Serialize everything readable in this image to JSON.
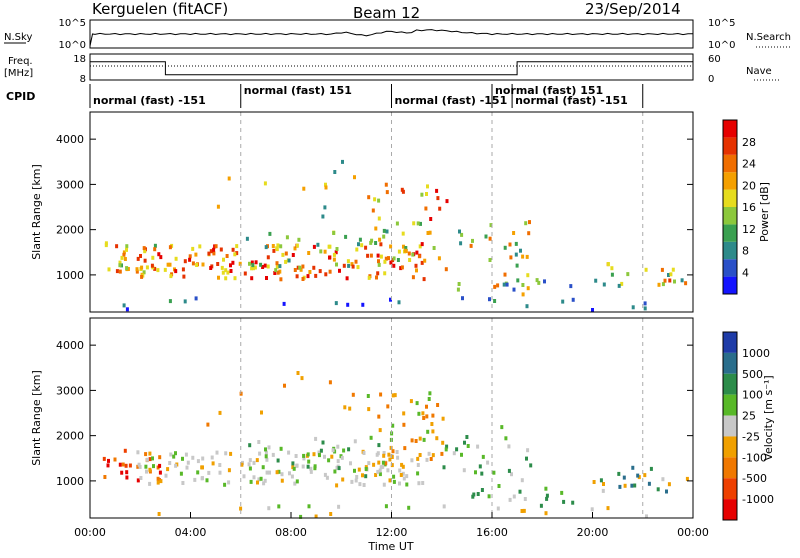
{
  "header": {
    "station": "Kerguelen (fitACF)",
    "beam": "Beam 12",
    "date": "23/Sep/2014"
  },
  "noise_panel": {
    "left_label": "N.Sky",
    "left_ticks": [
      "10^5",
      "10^0"
    ],
    "right_ticks": [
      "10^5",
      "10^0"
    ],
    "right_label": "N.Search"
  },
  "freq_panel": {
    "left_label_1": "Freq.",
    "left_label_2": "[MHz]",
    "left_ticks": [
      "18",
      "8"
    ],
    "right_ticks": [
      "60",
      "0"
    ],
    "right_label": "Nave",
    "freq_steps": [
      {
        "from": 0,
        "to": 3,
        "value": 15
      },
      {
        "from": 3,
        "to": 17,
        "value": 10
      },
      {
        "from": 17,
        "to": 24,
        "value": 15
      }
    ]
  },
  "cpid": {
    "label": "CPID",
    "segments": [
      {
        "start": 0,
        "end": 6,
        "text": "normal (fast) -151",
        "row": 1
      },
      {
        "start": 6,
        "end": 12,
        "text": "normal (fast) 151",
        "row": 0
      },
      {
        "start": 12,
        "end": 16,
        "text": "normal (fast) -151",
        "row": 1
      },
      {
        "start": 16,
        "end": 22,
        "text": "normal (fast) 151",
        "row": 0
      },
      {
        "start": 16.8,
        "end": 22,
        "text": "normal (fast) -151",
        "row": 1
      }
    ]
  },
  "chart_data": [
    {
      "type": "heatmap",
      "quantity": "Power",
      "ylabel": "Slant Range [km]",
      "ylim": [
        180,
        4600
      ],
      "yticks": [
        "1000",
        "2000",
        "3000",
        "4000"
      ],
      "xlim": [
        0,
        24
      ],
      "colorbar": {
        "label": "Power [dB]",
        "ticks": [
          "4",
          "8",
          "12",
          "16",
          "20",
          "24",
          "28"
        ],
        "colors": [
          "#1414ff",
          "#2a50c8",
          "#2d8a8a",
          "#3aa050",
          "#8cc83c",
          "#e6dc1e",
          "#f5a000",
          "#f06e00",
          "#e63200",
          "#e60000"
        ]
      }
    },
    {
      "type": "heatmap",
      "quantity": "Velocity",
      "ylabel": "Slant Range [km]",
      "ylim": [
        180,
        4600
      ],
      "yticks": [
        "1000",
        "2000",
        "3000",
        "4000"
      ],
      "xlim": [
        0,
        24
      ],
      "xticks": [
        "00:00",
        "04:00",
        "08:00",
        "12:00",
        "16:00",
        "20:00",
        "00:00"
      ],
      "xlabel": "Time UT",
      "colorbar": {
        "label": "Velocity [m s⁻¹]",
        "ticks": [
          "1000",
          "500",
          "100",
          "25",
          "-25",
          "-100",
          "-500",
          "-1000"
        ],
        "colors": [
          "#1f3ca8",
          "#2a6e8c",
          "#2c8c4a",
          "#58b828",
          "#c8c8c8",
          "#f0a000",
          "#f07800",
          "#ee4000",
          "#e60000"
        ]
      }
    }
  ]
}
